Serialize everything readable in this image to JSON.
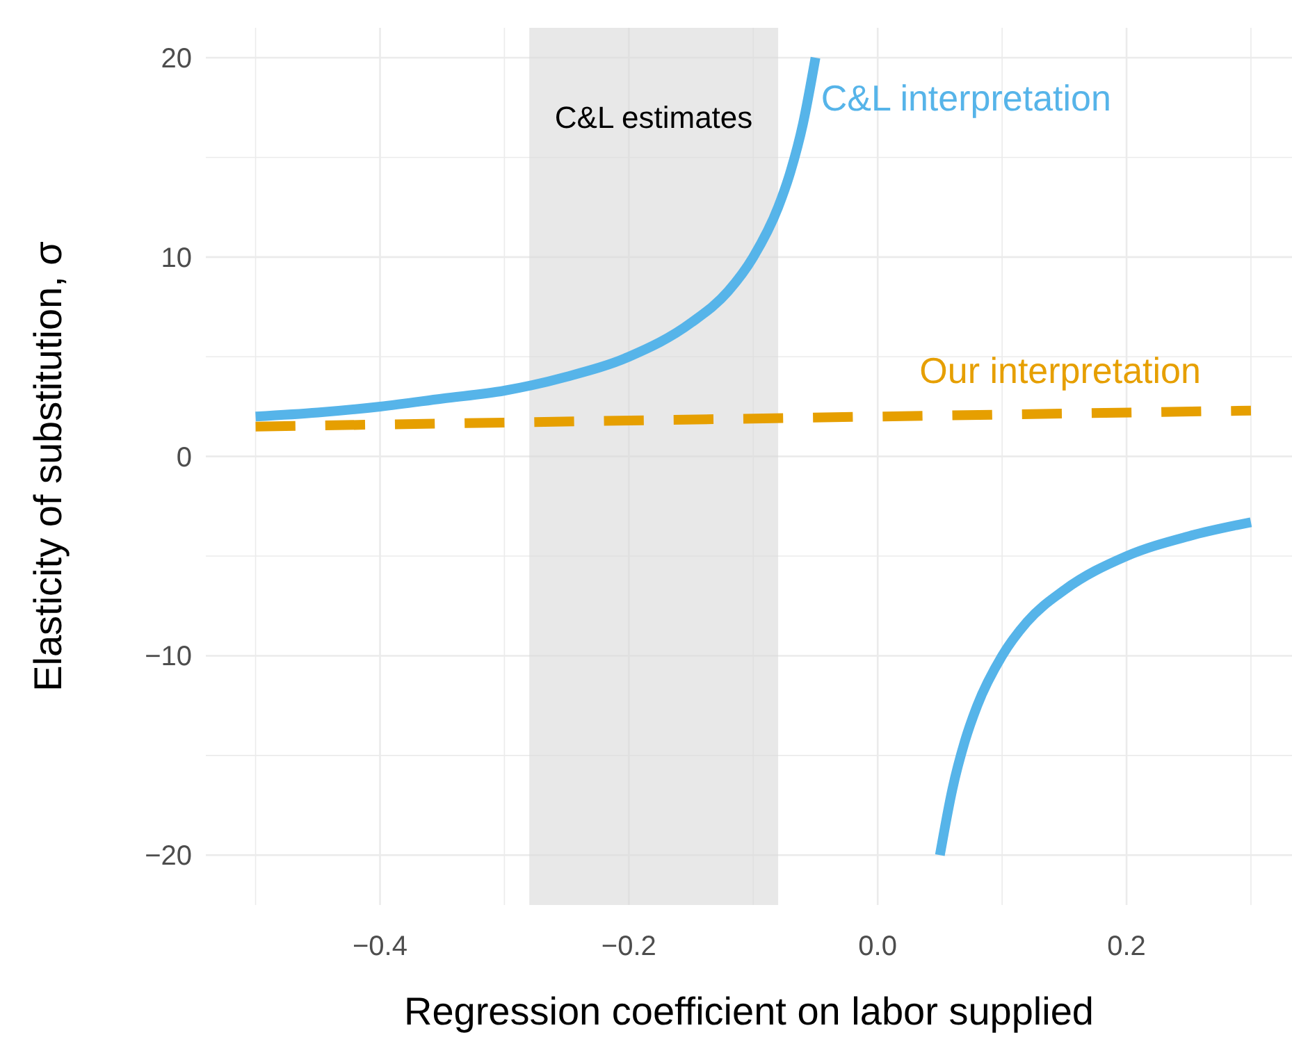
{
  "chart_data": {
    "type": "line",
    "xlabel": "Regression coefficient on labor supplied",
    "ylabel": "Elasticity of substitution,  σ",
    "xlim": [
      -0.54,
      0.333
    ],
    "ylim": [
      -22.5,
      21.5
    ],
    "xticks": [
      {
        "value": -0.5,
        "label": null
      },
      -0.4,
      {
        "value": -0.3,
        "label": null
      },
      -0.2,
      {
        "value": -0.1,
        "label": null
      },
      {
        "value": 0,
        "label": "0.0"
      },
      {
        "value": 0.1,
        "label": null
      },
      0.2,
      {
        "value": 0.3,
        "label": null
      }
    ],
    "yticks": [
      -20,
      {
        "value": -15,
        "label": null
      },
      -10,
      {
        "value": -5,
        "label": null
      },
      0,
      {
        "value": 5,
        "label": null
      },
      10,
      {
        "value": 15,
        "label": null
      },
      20
    ],
    "grid": true,
    "bands": [
      {
        "axis": "x",
        "from": -0.28,
        "to": -0.08,
        "label": "C&L estimates",
        "color": "#d9d9d9"
      }
    ],
    "series": [
      {
        "name": "C&L interpretation",
        "color": "#56b4e9",
        "line_style": "solid",
        "x": [
          -0.5,
          -0.45,
          -0.4,
          -0.35,
          -0.3,
          -0.25,
          -0.2,
          -0.15,
          -0.12,
          -0.1,
          -0.08,
          -0.07,
          -0.06,
          -0.05,
          0,
          0.05,
          0.06,
          0.07,
          0.08,
          0.1,
          0.12,
          0.15,
          0.2,
          0.25,
          0.3
        ],
        "values": [
          2,
          2.2,
          2.5,
          2.9,
          3.3,
          4,
          5,
          6.7,
          8.3,
          10,
          12.5,
          14.3,
          16.7,
          20,
          null,
          -20,
          -16.7,
          -14.3,
          -12.5,
          -10,
          -8.3,
          -6.7,
          -5,
          -4,
          -3.3
        ]
      },
      {
        "name": "Our interpretation",
        "color": "#e69f00",
        "line_style": "dashed",
        "x": [
          -0.5,
          0.3
        ],
        "values": [
          1.5,
          2.3
        ]
      }
    ]
  }
}
